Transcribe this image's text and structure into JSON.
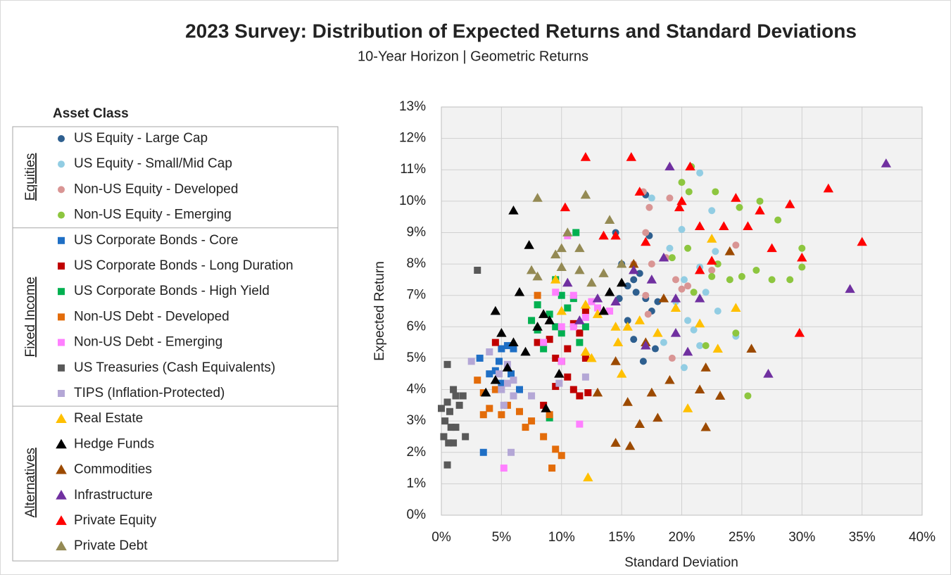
{
  "chart_data": {
    "type": "scatter",
    "title": "2023 Survey: Distribution of Expected Returns and Standard Deviations",
    "subtitle": "10-Year Horizon | Geometric Returns",
    "x_label": "Standard Deviation",
    "y_label": "Expected Return",
    "legend_title": "Asset Class",
    "legend": "left",
    "grid": true,
    "xlim": [
      0,
      40
    ],
    "ylim": [
      0,
      13
    ],
    "xticks": [
      {
        "value": 0,
        "label": "0%"
      },
      {
        "value": 5,
        "label": "5%"
      },
      {
        "value": 10,
        "label": "10%"
      },
      {
        "value": 15,
        "label": "15%"
      },
      {
        "value": 20,
        "label": "20%"
      },
      {
        "value": 25,
        "label": "25%"
      },
      {
        "value": 30,
        "label": "30%"
      },
      {
        "value": 35,
        "label": "35%"
      },
      {
        "value": 40,
        "label": "40%"
      }
    ],
    "yticks": [
      {
        "value": 0,
        "label": "0%"
      },
      {
        "value": 1,
        "label": "1%"
      },
      {
        "value": 2,
        "label": "2%"
      },
      {
        "value": 3,
        "label": "3%"
      },
      {
        "value": 4,
        "label": "4%"
      },
      {
        "value": 5,
        "label": "5%"
      },
      {
        "value": 6,
        "label": "6%"
      },
      {
        "value": 7,
        "label": "7%"
      },
      {
        "value": 8,
        "label": "8%"
      },
      {
        "value": 9,
        "label": "9%"
      },
      {
        "value": 10,
        "label": "10%"
      },
      {
        "value": 11,
        "label": "11%"
      },
      {
        "value": 12,
        "label": "12%"
      },
      {
        "value": 13,
        "label": "13%"
      }
    ],
    "series": [
      {
        "name": "US Equity - Large Cap",
        "group": "Equities",
        "marker": "circle",
        "color": "#2e5f8f",
        "x": [
          14.5,
          15,
          15.5,
          16,
          16.5,
          17,
          17,
          17.5,
          15.5,
          16,
          17.8,
          16.8,
          18,
          14.8,
          16.2,
          17.3
        ],
        "values": [
          9.0,
          8.0,
          7.3,
          7.5,
          7.7,
          10.2,
          6.9,
          6.5,
          6.2,
          5.6,
          5.3,
          4.9,
          6.8,
          6.9,
          7.1,
          8.9
        ]
      },
      {
        "name": "US Equity - Small/Mid Cap",
        "group": "Equities",
        "marker": "circle",
        "color": "#92cde3",
        "x": [
          21.5,
          17.5,
          22.5,
          20,
          19,
          21.5,
          20.2,
          22,
          19.5,
          20.5,
          21,
          21.5,
          20.2,
          23,
          22.8,
          24.5,
          18.5
        ],
        "values": [
          10.9,
          10.1,
          9.7,
          9.1,
          8.5,
          7.9,
          7.5,
          7.1,
          6.8,
          6.2,
          5.9,
          5.4,
          4.7,
          6.5,
          8.4,
          5.7,
          5.5
        ]
      },
      {
        "name": "Non-US Equity - Developed",
        "group": "Equities",
        "marker": "circle",
        "color": "#d99594",
        "x": [
          16.8,
          17.3,
          19,
          17,
          16,
          17.5,
          18.7,
          19.5,
          17,
          20.5,
          22.5,
          24.5,
          19.2,
          17.2,
          20
        ],
        "values": [
          10.3,
          9.8,
          10.1,
          9.0,
          8.0,
          8.0,
          8.2,
          7.5,
          7.0,
          7.3,
          7.8,
          8.6,
          5.0,
          6.4,
          7.2
        ]
      },
      {
        "name": "Non-US Equity - Emerging",
        "group": "Equities",
        "marker": "circle",
        "color": "#8dc63f",
        "x": [
          20.8,
          20,
          20.6,
          22.8,
          24.8,
          26.5,
          28,
          30,
          29,
          27.5,
          26.2,
          25,
          22.5,
          24,
          21,
          19.2,
          20.5,
          23,
          25.5,
          24.5,
          22,
          30
        ],
        "values": [
          11.1,
          10.6,
          10.3,
          10.3,
          9.8,
          10.0,
          9.4,
          8.5,
          7.5,
          7.5,
          7.8,
          7.6,
          7.6,
          7.5,
          7.1,
          8.2,
          8.5,
          8.0,
          3.8,
          5.8,
          5.4,
          7.9
        ]
      },
      {
        "name": "US Corporate Bonds - Core",
        "group": "Fixed Income",
        "marker": "square",
        "color": "#1f6fc5",
        "x": [
          3.2,
          4,
          4.5,
          5,
          5.5,
          6,
          5,
          6.5,
          3.5,
          4.8,
          5.8
        ],
        "values": [
          5.0,
          4.5,
          4.6,
          5.3,
          5.4,
          5.3,
          4.2,
          4.0,
          2.0,
          4.9,
          4.5
        ]
      },
      {
        "name": "US Corporate Bonds - Long Duration",
        "group": "Fixed Income",
        "marker": "square",
        "color": "#c00000",
        "x": [
          4.5,
          8,
          9,
          9.5,
          10,
          10.5,
          11.5,
          12,
          11,
          11.5,
          12.2,
          9.5,
          10.5,
          11,
          12,
          8.5
        ],
        "values": [
          5.5,
          5.5,
          5.6,
          5.0,
          4.9,
          5.3,
          5.8,
          5.0,
          4.0,
          3.8,
          3.9,
          4.1,
          4.4,
          6.1,
          6.5,
          3.5
        ]
      },
      {
        "name": "US Corporate Bonds - High Yield",
        "group": "Fixed Income",
        "marker": "square",
        "color": "#00b050",
        "x": [
          11.2,
          9.5,
          10,
          10.5,
          11,
          8,
          7.5,
          9,
          9.5,
          10,
          11.5,
          12,
          8.5,
          9,
          8
        ],
        "values": [
          9.0,
          7.5,
          7.0,
          6.6,
          6.9,
          6.7,
          6.2,
          6.4,
          6.0,
          5.8,
          5.5,
          6.0,
          5.3,
          3.1,
          5.9
        ]
      },
      {
        "name": "Non-US Debt - Developed",
        "group": "Fixed Income",
        "marker": "square",
        "color": "#e36c0a",
        "x": [
          3,
          3.5,
          4,
          3.5,
          5,
          5.5,
          6.5,
          7,
          7.5,
          8.5,
          9,
          9.5,
          10,
          9.2,
          8,
          4.5
        ],
        "values": [
          4.3,
          3.9,
          3.4,
          3.2,
          3.2,
          3.5,
          3.3,
          2.8,
          3.0,
          2.5,
          3.2,
          2.1,
          1.9,
          1.5,
          7.0,
          4.0
        ]
      },
      {
        "name": "Non-US Debt - Emerging",
        "group": "Fixed Income",
        "marker": "square",
        "color": "#ff80ff",
        "x": [
          10.5,
          9.5,
          11,
          12,
          13,
          10,
          12.5,
          11,
          14,
          8.5,
          10,
          11.5,
          5.2
        ],
        "values": [
          8.9,
          7.1,
          7.0,
          6.3,
          6.6,
          6.0,
          6.8,
          6.0,
          6.5,
          5.5,
          4.9,
          2.9,
          1.5
        ]
      },
      {
        "name": "US Treasuries (Cash Equivalents)",
        "group": "Fixed Income",
        "marker": "square",
        "color": "#595959",
        "x": [
          3.0,
          0.5,
          1,
          1.2,
          0.5,
          1.5,
          0,
          0.3,
          0.8,
          0.2,
          0.6,
          1.0,
          2,
          0.5,
          1.8,
          0.7,
          1.2
        ],
        "values": [
          7.8,
          4.8,
          4.0,
          3.8,
          3.6,
          3.5,
          3.4,
          3.0,
          2.8,
          2.5,
          2.3,
          2.3,
          2.5,
          1.6,
          3.8,
          3.3,
          2.8
        ]
      },
      {
        "name": "TIPS (Inflation-Protected)",
        "group": "Fixed Income",
        "marker": "square",
        "color": "#b4a7d6",
        "x": [
          2.5,
          4,
          4.8,
          5,
          5.5,
          6,
          5.2,
          6,
          5.8,
          7.5,
          9.8,
          12,
          5.5
        ],
        "values": [
          4.9,
          5.2,
          4.5,
          4.0,
          4.2,
          4.3,
          3.5,
          3.8,
          2.0,
          3.8,
          4.2,
          4.4,
          4.8
        ]
      },
      {
        "name": "Real Estate",
        "group": "Alternatives",
        "marker": "triangle",
        "color": "#ffc000",
        "x": [
          9.5,
          10,
          12,
          13,
          14.5,
          15.5,
          14.7,
          15,
          12.5,
          16.5,
          18,
          19.5,
          21.5,
          23,
          24.5,
          22.5,
          20.5,
          12.2,
          12
        ],
        "values": [
          7.5,
          6.5,
          6.7,
          6.4,
          6.0,
          6.0,
          5.5,
          4.5,
          5.0,
          6.2,
          5.8,
          6.6,
          6.1,
          5.3,
          6.6,
          8.8,
          3.4,
          1.2,
          5.2
        ]
      },
      {
        "name": "Hedge Funds",
        "group": "Alternatives",
        "marker": "triangle",
        "color": "#000000",
        "x": [
          6,
          7.3,
          8.5,
          9,
          8,
          6.5,
          4.5,
          5,
          6,
          7,
          5.5,
          4.5,
          3.7,
          8.7,
          9.8,
          13.5,
          15,
          14
        ],
        "values": [
          9.7,
          8.6,
          6.4,
          6.2,
          6.0,
          7.1,
          6.5,
          5.8,
          5.5,
          5.2,
          4.7,
          4.3,
          3.9,
          3.4,
          4.5,
          6.5,
          7.4,
          7.1
        ]
      },
      {
        "name": "Commodities",
        "group": "Alternatives",
        "marker": "triangle",
        "color": "#9c4a00",
        "x": [
          13,
          14.5,
          15.7,
          15.5,
          16.5,
          17.5,
          18,
          19,
          21.5,
          22,
          23.2,
          22,
          25.8,
          24,
          18.5,
          16,
          17,
          14.5
        ],
        "values": [
          3.9,
          2.3,
          2.2,
          3.6,
          2.9,
          3.9,
          3.1,
          4.3,
          4.0,
          2.8,
          3.8,
          4.7,
          5.3,
          8.4,
          6.9,
          8.0,
          5.5,
          4.9
        ]
      },
      {
        "name": "Infrastructure",
        "group": "Alternatives",
        "marker": "triangle",
        "color": "#7030a0",
        "x": [
          37,
          34,
          27.2,
          19,
          18.5,
          17.5,
          19.5,
          16,
          14.5,
          13,
          11.5,
          10.5,
          17,
          20.5,
          21.5,
          19.5
        ],
        "values": [
          11.2,
          7.2,
          4.5,
          11.1,
          8.2,
          7.5,
          6.9,
          7.8,
          6.8,
          6.9,
          6.2,
          7.4,
          5.4,
          5.2,
          6.9,
          5.8
        ]
      },
      {
        "name": "Private Equity",
        "group": "Alternatives",
        "marker": "triangle",
        "color": "#ff0000",
        "x": [
          12,
          15.8,
          20.7,
          10.3,
          13.5,
          16.5,
          20,
          24.5,
          26.5,
          29,
          32.2,
          35,
          30,
          29.8,
          27.5,
          25.5,
          23.5,
          21.5,
          22.5,
          19.8,
          17,
          21.5,
          14.5
        ],
        "values": [
          11.4,
          11.4,
          11.1,
          9.8,
          8.9,
          10.3,
          10.0,
          10.1,
          9.7,
          9.9,
          10.4,
          8.7,
          8.2,
          5.8,
          8.5,
          9.2,
          9.2,
          9.2,
          8.1,
          9.8,
          8.7,
          7.8,
          8.9
        ]
      },
      {
        "name": "Private Debt",
        "group": "Alternatives",
        "marker": "triangle",
        "color": "#948a54",
        "x": [
          8,
          12,
          10.5,
          11.5,
          9.5,
          10,
          7.5,
          8,
          11.5,
          14,
          15,
          12.5,
          13.5,
          10
        ],
        "values": [
          10.1,
          10.2,
          9.0,
          8.5,
          8.3,
          8.5,
          7.8,
          7.6,
          7.8,
          9.4,
          8.0,
          7.4,
          7.7,
          7.9
        ]
      }
    ]
  }
}
